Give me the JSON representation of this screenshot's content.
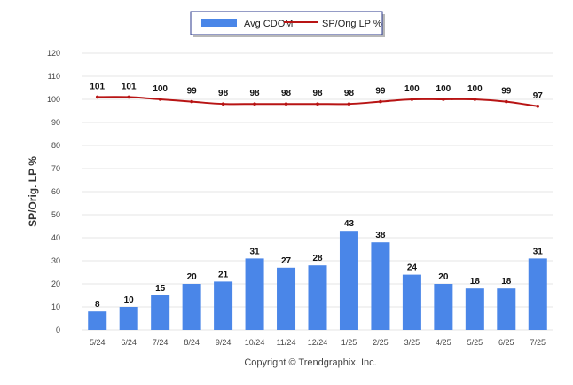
{
  "chart_data": {
    "type": "bar",
    "categories": [
      "5/24",
      "6/24",
      "7/24",
      "8/24",
      "9/24",
      "10/24",
      "11/24",
      "12/24",
      "1/25",
      "2/25",
      "3/25",
      "4/25",
      "5/25",
      "6/25",
      "7/25"
    ],
    "series": [
      {
        "name": "Avg CDOM",
        "type": "bar",
        "color": "#4a86e8",
        "values": [
          8,
          10,
          15,
          20,
          21,
          31,
          27,
          28,
          43,
          38,
          24,
          20,
          18,
          18,
          31
        ]
      },
      {
        "name": "SP/Orig LP %",
        "type": "line",
        "color": "#b81414",
        "values": [
          101,
          101,
          100,
          99,
          98,
          98,
          98,
          98,
          98,
          99,
          100,
          100,
          100,
          99,
          97
        ]
      }
    ],
    "ylabel": "SP/Orig. LP %",
    "xlabel": "",
    "ylim": [
      0,
      120
    ],
    "yticks": [
      0,
      10,
      20,
      30,
      40,
      50,
      60,
      70,
      80,
      90,
      100,
      110,
      120
    ],
    "grid": true,
    "legend_position": "top-center"
  },
  "footer": {
    "copyright": "Copyright © Trendgraphix, Inc."
  }
}
